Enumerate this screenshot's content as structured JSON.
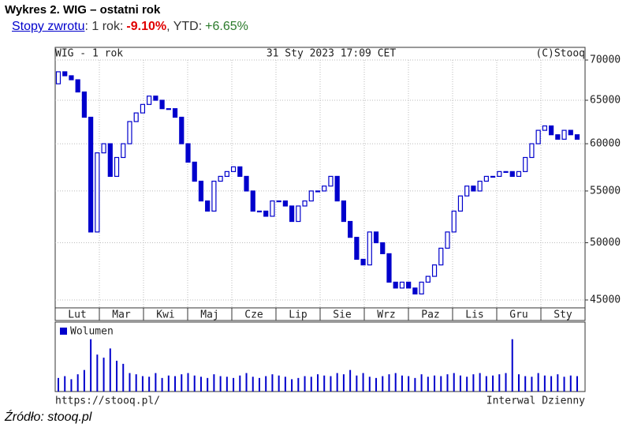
{
  "heading": {
    "title": "Wykres 2. WIG – ostatni rok",
    "link": "Stopy zwrotu",
    "items": [
      {
        "label": ": 1 rok:",
        "value": "-9.10%"
      },
      {
        "label": ", YTD:",
        "value": "+6.65%"
      }
    ]
  },
  "chart_data": [
    {
      "type": "candlestick",
      "title": "WIG - 1 rok",
      "subtitle": "31 Sty 2023 17:09 CET",
      "credit": "(C)Stooq",
      "color": "#0000cc",
      "log_scale": true,
      "grid": true,
      "categories": [
        "Lut",
        "Mar",
        "Kwi",
        "Maj",
        "Cze",
        "Lip",
        "Sie",
        "Wrz",
        "Paz",
        "Lis",
        "Gru",
        "Sty"
      ],
      "open": [
        67000,
        68500,
        68000,
        67500,
        66000,
        63000,
        51000,
        59000,
        60000,
        56500,
        58500,
        60000,
        62500,
        63500,
        64500,
        65500,
        65000,
        64000,
        64000,
        63000,
        60000,
        58000,
        56000,
        54000,
        53000,
        56000,
        56500,
        57000,
        57500,
        56500,
        55000,
        53000,
        53000,
        52500,
        54000,
        54000,
        53500,
        52000,
        53500,
        54000,
        55000,
        55000,
        55500,
        56500,
        54000,
        52000,
        50500,
        48500,
        48000,
        51000,
        50000,
        49000,
        46500,
        46000,
        46500,
        46000,
        45500,
        46500,
        47000,
        48000,
        49500,
        51000,
        53000,
        54500,
        55500,
        55000,
        56000,
        56500,
        56500,
        57000,
        57000,
        56500,
        57000,
        58500,
        60000,
        61500,
        62000,
        61000,
        60500,
        61500,
        61000
      ],
      "close": [
        68500,
        68000,
        67500,
        66000,
        63000,
        51000,
        59000,
        60000,
        56500,
        58500,
        60000,
        62500,
        63500,
        64500,
        65500,
        65000,
        64000,
        64000,
        63000,
        60000,
        58000,
        56000,
        54000,
        53000,
        56000,
        56500,
        57000,
        57500,
        56500,
        55000,
        53000,
        53000,
        52500,
        54000,
        54000,
        53500,
        52000,
        53500,
        54000,
        55000,
        55000,
        55500,
        56500,
        54000,
        52000,
        50500,
        48500,
        48000,
        51000,
        50000,
        49000,
        46500,
        46000,
        46500,
        46000,
        45500,
        46500,
        47000,
        48000,
        49500,
        51000,
        53000,
        54500,
        55500,
        55000,
        56000,
        56500,
        56500,
        57000,
        57000,
        56500,
        57000,
        58500,
        60000,
        61500,
        62000,
        61000,
        60500,
        61500,
        61000,
        60500
      ],
      "ylim": [
        44350,
        71650
      ],
      "yticks": [
        45000,
        50000,
        55000,
        60000,
        65000,
        70000
      ]
    },
    {
      "type": "bar",
      "series": [
        {
          "name": "Wolumen",
          "color": "#0000cc",
          "values": [
            22,
            25,
            20,
            28,
            35,
            85,
            60,
            55,
            70,
            50,
            45,
            30,
            28,
            25,
            24,
            30,
            22,
            26,
            25,
            28,
            30,
            26,
            24,
            22,
            28,
            25,
            24,
            22,
            26,
            30,
            24,
            22,
            25,
            28,
            26,
            24,
            20,
            22,
            25,
            24,
            28,
            26,
            25,
            30,
            28,
            35,
            26,
            30,
            24,
            22,
            25,
            28,
            30,
            26,
            25,
            22,
            28,
            24,
            26,
            25,
            28,
            30,
            26,
            24,
            28,
            30,
            25,
            26,
            28,
            30,
            85,
            28,
            25,
            24,
            30,
            26,
            25,
            28,
            24,
            26,
            25
          ]
        }
      ],
      "ylim": [
        0,
        100
      ],
      "source": "https://stooq.pl/",
      "interval": "Interwal Dzienny"
    }
  ],
  "source_note": "Źródło: stooq.pl"
}
